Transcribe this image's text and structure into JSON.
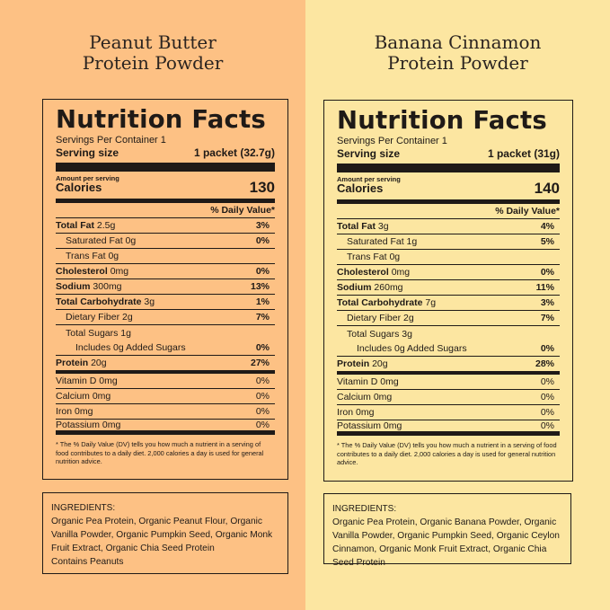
{
  "colors": {
    "left_bg": "#FDC184",
    "right_bg": "#FCE6A1",
    "ink": "#1f1a17"
  },
  "panels": [
    {
      "title_line1": "Peanut Butter",
      "title_line2": "Protein Powder",
      "nf_heading": "Nutrition Facts",
      "servings_per_container": "Servings Per Container 1",
      "serving_size_label": "Serving size",
      "serving_size_value": "1 packet (32.7g)",
      "amount_per_serving": "Amount per serving",
      "calories_label": "Calories",
      "calories_value": "130",
      "dv_header": "% Daily Value*",
      "rows": [
        {
          "name": "Total Fat",
          "amount": "2.5g",
          "pct": "3%"
        },
        {
          "name": "Saturated Fat 0g",
          "amount": "",
          "pct": "0%"
        },
        {
          "name": "Trans Fat 0g",
          "amount": "",
          "pct": ""
        },
        {
          "name": "Cholesterol",
          "amount": "0mg",
          "pct": "0%"
        },
        {
          "name": "Sodium",
          "amount": "300mg",
          "pct": "13%"
        },
        {
          "name": "Total Carbohydrate",
          "amount": "3g",
          "pct": "1%"
        },
        {
          "name": "Dietary Fiber 2g",
          "amount": "",
          "pct": "7%"
        },
        {
          "name": "Total Sugars 1g",
          "amount": "",
          "pct": ""
        },
        {
          "name": "Includes 0g Added Sugars",
          "amount": "",
          "pct": "0%"
        },
        {
          "name": "Protein",
          "amount": "20g",
          "pct": "27%"
        }
      ],
      "vitamins": [
        {
          "name": "Vitamin D 0mg",
          "pct": "0%"
        },
        {
          "name": "Calcium 0mg",
          "pct": "0%"
        },
        {
          "name": "Iron 0mg",
          "pct": "0%"
        },
        {
          "name": "Potassium 0mg",
          "pct": "0%"
        }
      ],
      "footnote": "* The % Daily Value (DV) tells you how much a nutrient in a serving of food contributes to a daily diet. 2,000 calories a day is used for general nutrition advice.",
      "ingredients_heading": "INGREDIENTS:",
      "ingredients_text": "Organic Pea Protein, Organic Peanut Flour, Organic Vanilla Powder, Organic Pumpkin Seed, Organic Monk Fruit Extract, Organic Chia Seed Protein",
      "contains": "Contains Peanuts"
    },
    {
      "title_line1": "Banana Cinnamon",
      "title_line2": "Protein Powder",
      "nf_heading": "Nutrition Facts",
      "servings_per_container": "Servings Per Container 1",
      "serving_size_label": "Serving size",
      "serving_size_value": "1 packet (31g)",
      "amount_per_serving": "Amount per serving",
      "calories_label": "Calories",
      "calories_value": "140",
      "dv_header": "% Daily Value*",
      "rows": [
        {
          "name": "Total Fat",
          "amount": "3g",
          "pct": "4%"
        },
        {
          "name": "Saturated Fat 1g",
          "amount": "",
          "pct": "5%"
        },
        {
          "name": "Trans Fat 0g",
          "amount": "",
          "pct": ""
        },
        {
          "name": "Cholesterol",
          "amount": "0mg",
          "pct": "0%"
        },
        {
          "name": "Sodium",
          "amount": "260mg",
          "pct": "11%"
        },
        {
          "name": "Total Carbohydrate",
          "amount": "7g",
          "pct": "3%"
        },
        {
          "name": "Dietary Fiber 2g",
          "amount": "",
          "pct": "7%"
        },
        {
          "name": "Total Sugars 3g",
          "amount": "",
          "pct": ""
        },
        {
          "name": "Includes 0g Added Sugars",
          "amount": "",
          "pct": "0%"
        },
        {
          "name": "Protein",
          "amount": "20g",
          "pct": "28%"
        }
      ],
      "vitamins": [
        {
          "name": "Vitamin D 0mg",
          "pct": "0%"
        },
        {
          "name": "Calcium 0mg",
          "pct": "0%"
        },
        {
          "name": "Iron 0mg",
          "pct": "0%"
        },
        {
          "name": "Potassium 0mg",
          "pct": "0%"
        }
      ],
      "footnote": "* The % Daily Value (DV) tells you how much a nutrient in a serving of food contributes to a daily diet. 2,000 calories a day is used for general nutrition advice.",
      "ingredients_heading": "INGREDIENTS:",
      "ingredients_text": "Organic Pea Protein, Organic Banana Powder, Organic Vanilla Powder, Organic Pumpkin Seed, Organic Ceylon Cinnamon, Organic Monk Fruit Extract, Organic Chia Seed Protein",
      "contains": ""
    }
  ]
}
